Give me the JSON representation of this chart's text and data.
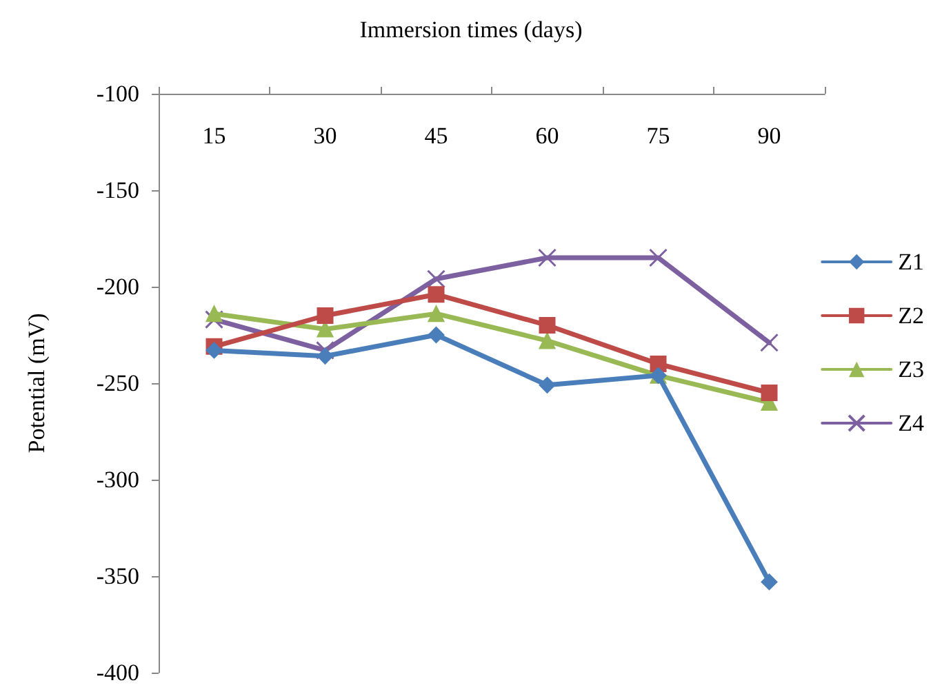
{
  "chart_data": {
    "type": "line",
    "xlabel": "Immersion times (days)",
    "ylabel": "Potential (mV)",
    "categories": [
      "15",
      "30",
      "45",
      "60",
      "75",
      "90"
    ],
    "series": [
      {
        "name": "Z1",
        "color": "#4a7ebb",
        "marker": "diamond",
        "values": [
          -233,
          -236,
          -225,
          -251,
          -246,
          -353
        ]
      },
      {
        "name": "Z2",
        "color": "#be4b48",
        "marker": "square",
        "values": [
          -231,
          -215,
          -204,
          -220,
          -240,
          -255
        ]
      },
      {
        "name": "Z3",
        "color": "#98b954",
        "marker": "triangle",
        "values": [
          -214,
          -222,
          -214,
          -228,
          -246,
          -260
        ]
      },
      {
        "name": "Z4",
        "color": "#7d60a0",
        "marker": "cross",
        "values": [
          -217,
          -233,
          -196,
          -185,
          -185,
          -229
        ]
      }
    ],
    "ylim": [
      -400,
      -100
    ],
    "yticks": [
      -400,
      -350,
      -300,
      -250,
      -200,
      -150,
      -100
    ],
    "grid": false,
    "legend": "right",
    "line_style": "solid"
  }
}
